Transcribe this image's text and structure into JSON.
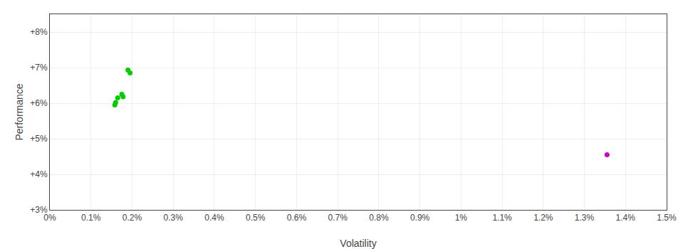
{
  "chart_data": {
    "type": "scatter",
    "xlabel": "Volatility",
    "ylabel": "Performance",
    "xlim": [
      0.0,
      0.015
    ],
    "ylim": [
      0.03,
      0.085
    ],
    "xticks": [
      {
        "value": 0.0,
        "label": "0%"
      },
      {
        "value": 0.001,
        "label": "0.1%"
      },
      {
        "value": 0.002,
        "label": "0.2%"
      },
      {
        "value": 0.003,
        "label": "0.3%"
      },
      {
        "value": 0.004,
        "label": "0.4%"
      },
      {
        "value": 0.005,
        "label": "0.5%"
      },
      {
        "value": 0.006,
        "label": "0.6%"
      },
      {
        "value": 0.007,
        "label": "0.7%"
      },
      {
        "value": 0.008,
        "label": "0.8%"
      },
      {
        "value": 0.009,
        "label": "0.9%"
      },
      {
        "value": 0.01,
        "label": "1%"
      },
      {
        "value": 0.011,
        "label": "1.1%"
      },
      {
        "value": 0.012,
        "label": "1.2%"
      },
      {
        "value": 0.013,
        "label": "1.3%"
      },
      {
        "value": 0.014,
        "label": "1.4%"
      },
      {
        "value": 0.015,
        "label": "1.5%"
      }
    ],
    "yticks": [
      {
        "value": 0.03,
        "label": "+3%"
      },
      {
        "value": 0.04,
        "label": "+4%"
      },
      {
        "value": 0.05,
        "label": "+5%"
      },
      {
        "value": 0.06,
        "label": "+6%"
      },
      {
        "value": 0.07,
        "label": "+7%"
      },
      {
        "value": 0.08,
        "label": "+8%"
      }
    ],
    "grid": true,
    "series": [
      {
        "color": "#00cc00",
        "x": [
          0.0019,
          0.00195,
          0.00165,
          0.00175,
          0.00178,
          0.0016,
          0.00158
        ],
        "values": [
          0.0693,
          0.0685,
          0.0615,
          0.0625,
          0.0618,
          0.0602,
          0.0595
        ]
      },
      {
        "color": "#cc00cc",
        "x": [
          0.01355
        ],
        "values": [
          0.0455
        ]
      }
    ]
  }
}
